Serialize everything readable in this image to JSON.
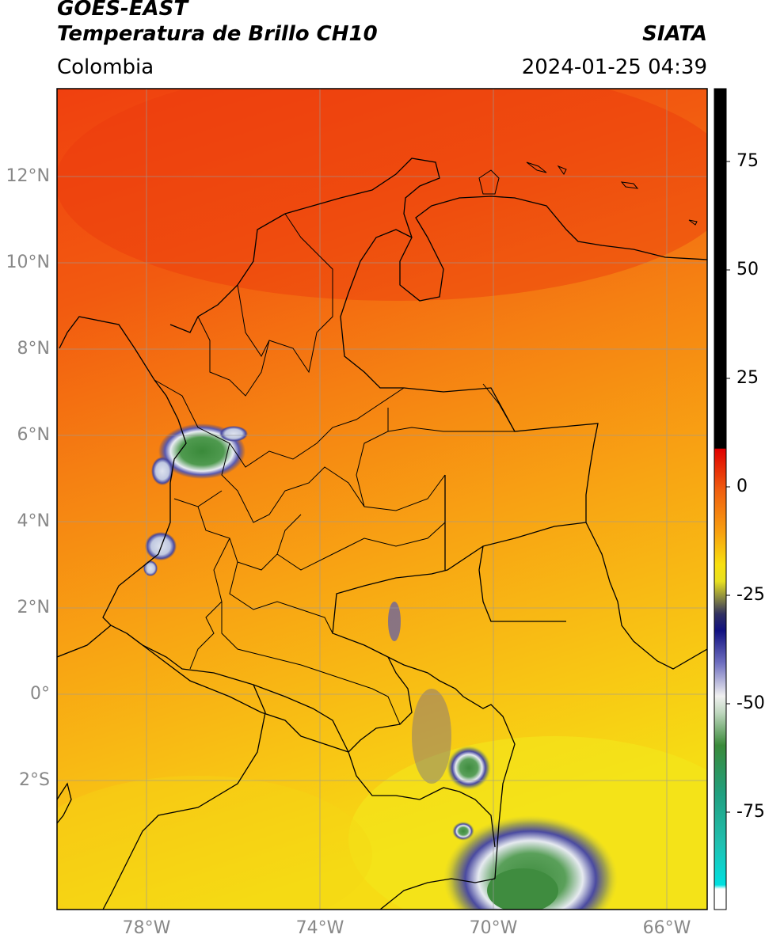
{
  "header": {
    "satellite": "GOES-EAST",
    "product": "Temperatura de Brillo CH10",
    "organization": "SIATA",
    "region": "Colombia",
    "datetime": "2024-01-25 04:39"
  },
  "map": {
    "lat_labels": [
      "12°N",
      "10°N",
      "8°N",
      "6°N",
      "4°N",
      "2°N",
      "0°",
      "2°S"
    ],
    "lon_labels": [
      "78°W",
      "74°W",
      "70°W",
      "66°W"
    ],
    "extent": {
      "lon_min": -80,
      "lon_max": -65,
      "lat_min": -5,
      "lat_max": 14
    }
  },
  "colorbar": {
    "ticks": [
      "75",
      "50",
      "25",
      "0",
      "-25",
      "-50",
      "-75"
    ]
  }
}
